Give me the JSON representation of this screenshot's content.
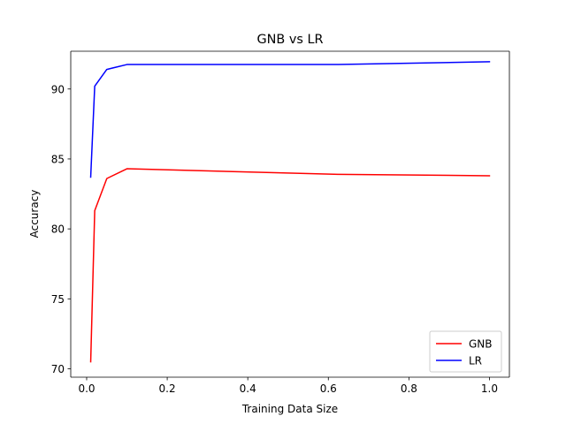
{
  "chart_data": {
    "type": "line",
    "title": "GNB vs LR",
    "xlabel": "Training Data Size",
    "ylabel": "Accuracy",
    "xlim": [
      -0.0395,
      1.0495
    ],
    "ylim": [
      69.4,
      92.7
    ],
    "xticks": [
      0.0,
      0.2,
      0.4,
      0.6,
      0.8,
      1.0
    ],
    "xtick_labels": [
      "0.0",
      "0.2",
      "0.4",
      "0.6",
      "0.8",
      "1.0"
    ],
    "yticks": [
      70,
      75,
      80,
      85,
      90
    ],
    "ytick_labels": [
      "70",
      "75",
      "80",
      "85",
      "90"
    ],
    "grid": false,
    "legend_position": "lower-right",
    "series": [
      {
        "name": "GNB",
        "color": "#ff0000",
        "x": [
          0.01,
          0.02,
          0.05,
          0.1,
          0.625,
          1.0
        ],
        "y": [
          70.5,
          81.3,
          83.6,
          84.3,
          83.9,
          83.8
        ]
      },
      {
        "name": "LR",
        "color": "#0000ff",
        "x": [
          0.01,
          0.02,
          0.05,
          0.1,
          0.625,
          1.0
        ],
        "y": [
          83.7,
          90.2,
          91.4,
          91.75,
          91.75,
          91.95
        ]
      }
    ]
  }
}
